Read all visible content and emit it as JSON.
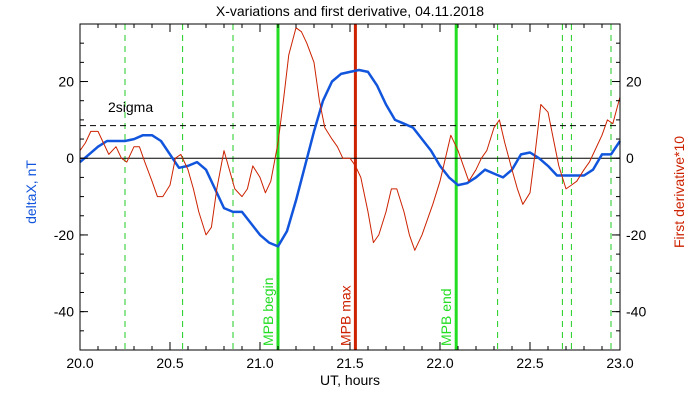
{
  "chart_data": {
    "type": "line",
    "title": "X-variations and first derivative, 04.11.2018",
    "xlabel": "UT, hours",
    "ylabel_left": "deltaX, nT",
    "ylabel_right": "First derivative*10",
    "xlim": [
      20.0,
      23.0
    ],
    "ylim": [
      -50,
      35
    ],
    "xticks": [
      "20.0",
      "20.5",
      "21.0",
      "21.5",
      "22.0",
      "22.5",
      "23.0"
    ],
    "yticks": [
      "-40",
      "-20",
      "0",
      "20"
    ],
    "sigma_label": "2sigma",
    "sigma_level": 8.5,
    "zero_level": 0,
    "colors": {
      "deltaX": "#1155dd",
      "derivative": "#cc2200",
      "mpb_edge": "#22dd22",
      "mpb_max": "#cc2200",
      "dashed": "#22cc22"
    },
    "dashed_markers": [
      20.25,
      20.57,
      20.85,
      22.32,
      22.68,
      22.73,
      22.95
    ],
    "mpb_lines": [
      {
        "label": "MPB begin",
        "x": 21.1,
        "color": "#22dd22"
      },
      {
        "label": "MPB max",
        "x": 21.53,
        "color": "#cc2200"
      },
      {
        "label": "MPB end",
        "x": 22.09,
        "color": "#22dd22"
      }
    ],
    "series": [
      {
        "name": "deltaX",
        "x": [
          20.0,
          20.05,
          20.1,
          20.15,
          20.2,
          20.25,
          20.3,
          20.35,
          20.4,
          20.45,
          20.5,
          20.55,
          20.6,
          20.65,
          20.7,
          20.75,
          20.8,
          20.85,
          20.9,
          20.95,
          21.0,
          21.05,
          21.1,
          21.15,
          21.2,
          21.25,
          21.3,
          21.35,
          21.4,
          21.45,
          21.5,
          21.55,
          21.6,
          21.65,
          21.7,
          21.75,
          21.8,
          21.85,
          21.9,
          21.95,
          22.0,
          22.05,
          22.1,
          22.15,
          22.2,
          22.25,
          22.3,
          22.35,
          22.4,
          22.45,
          22.5,
          22.55,
          22.6,
          22.65,
          22.7,
          22.75,
          22.8,
          22.85,
          22.9,
          22.95,
          23.0
        ],
        "values": [
          -1,
          1,
          3,
          4.5,
          4.5,
          4.5,
          5,
          6,
          6,
          4.5,
          1,
          -2.5,
          -2,
          -1,
          -3,
          -8,
          -13,
          -14,
          -14,
          -17,
          -20,
          -22,
          -23,
          -19,
          -11,
          -2,
          7,
          15,
          20,
          22,
          22.5,
          23,
          22.5,
          19,
          14,
          10,
          9,
          8,
          5,
          2,
          -2,
          -5,
          -7,
          -6.5,
          -5,
          -3,
          -4,
          -5,
          -3,
          1,
          1.5,
          0,
          -2,
          -4.5,
          -4.5,
          -4.5,
          -4.5,
          -3,
          1,
          1,
          4.5
        ]
      },
      {
        "name": "First derivative*10",
        "x": [
          20.0,
          20.03,
          20.06,
          20.1,
          20.13,
          20.16,
          20.2,
          20.23,
          20.26,
          20.3,
          20.33,
          20.36,
          20.4,
          20.43,
          20.46,
          20.5,
          20.53,
          20.56,
          20.6,
          20.63,
          20.66,
          20.7,
          20.73,
          20.76,
          20.8,
          20.83,
          20.86,
          20.9,
          20.93,
          20.96,
          21.0,
          21.03,
          21.06,
          21.1,
          21.13,
          21.16,
          21.2,
          21.23,
          21.26,
          21.3,
          21.33,
          21.36,
          21.4,
          21.43,
          21.46,
          21.5,
          21.53,
          21.56,
          21.6,
          21.63,
          21.66,
          21.7,
          21.73,
          21.76,
          21.8,
          21.83,
          21.86,
          21.9,
          21.93,
          21.96,
          22.0,
          22.03,
          22.06,
          22.1,
          22.13,
          22.16,
          22.2,
          22.23,
          22.26,
          22.3,
          22.33,
          22.36,
          22.4,
          22.43,
          22.46,
          22.5,
          22.53,
          22.56,
          22.6,
          22.63,
          22.66,
          22.7,
          22.73,
          22.76,
          22.8,
          22.83,
          22.86,
          22.9,
          22.93,
          22.96,
          23.0
        ],
        "values": [
          2,
          4,
          7,
          7,
          4,
          1,
          3,
          0,
          -1,
          3,
          3,
          -1,
          -6,
          -10,
          -10,
          -7,
          0,
          1,
          -3,
          -8,
          -14,
          -20,
          -18,
          -8,
          2,
          -3,
          -8,
          -10,
          -8,
          -2,
          -5,
          -9,
          -6,
          4,
          15,
          27,
          34,
          33,
          30,
          25,
          15,
          8,
          5,
          3,
          0,
          0,
          -2,
          -5,
          -14,
          -22,
          -20,
          -14,
          -8,
          -8,
          -14,
          -20,
          -24,
          -20,
          -16,
          -12,
          -6,
          0,
          6,
          2,
          -2,
          -6,
          -3,
          0,
          2,
          8,
          10,
          4,
          -3,
          -8,
          -12,
          -9,
          2,
          14,
          12,
          5,
          -2,
          -8,
          -7,
          -6,
          -3,
          -1,
          2,
          6,
          10,
          9,
          16
        ]
      }
    ]
  }
}
